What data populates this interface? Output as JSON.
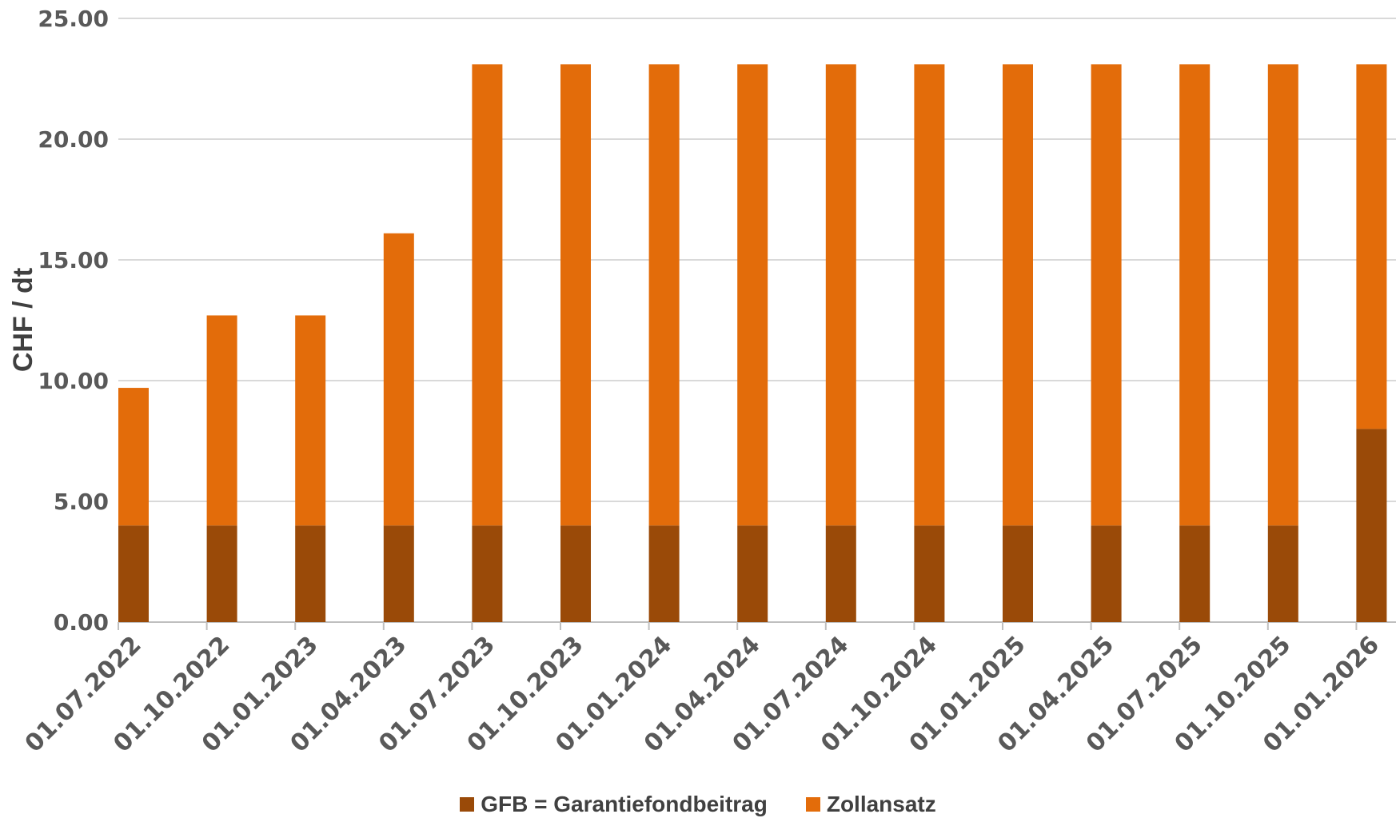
{
  "chart_data": {
    "type": "bar",
    "stacked": true,
    "categories": [
      "01.07.2022",
      "01.10.2022",
      "01.01.2023",
      "01.04.2023",
      "01.07.2023",
      "01.10.2023",
      "01.01.2024",
      "01.04.2024",
      "01.07.2024",
      "01.10.2024",
      "01.01.2025",
      "01.04.2025",
      "01.07.2025",
      "01.10.2025",
      "01.01.2026"
    ],
    "series": [
      {
        "name": "GFB = Garantiefondbeitrag",
        "color": "#9a4a08",
        "values": [
          4.0,
          4.0,
          4.0,
          4.0,
          4.0,
          4.0,
          4.0,
          4.0,
          4.0,
          4.0,
          4.0,
          4.0,
          4.0,
          4.0,
          8.0
        ]
      },
      {
        "name": "Zollansatz",
        "color": "#e36c0a",
        "values": [
          5.7,
          8.7,
          8.7,
          12.1,
          19.1,
          19.1,
          19.1,
          19.1,
          19.1,
          19.1,
          19.1,
          19.1,
          19.1,
          19.1,
          15.1
        ]
      }
    ],
    "ylabel": "CHF / dt",
    "xlabel": "",
    "ylim": [
      0,
      25
    ],
    "yticks": [
      "0.00",
      "5.00",
      "10.00",
      "15.00",
      "20.00",
      "25.00"
    ],
    "grid": true,
    "legend_position": "bottom"
  }
}
